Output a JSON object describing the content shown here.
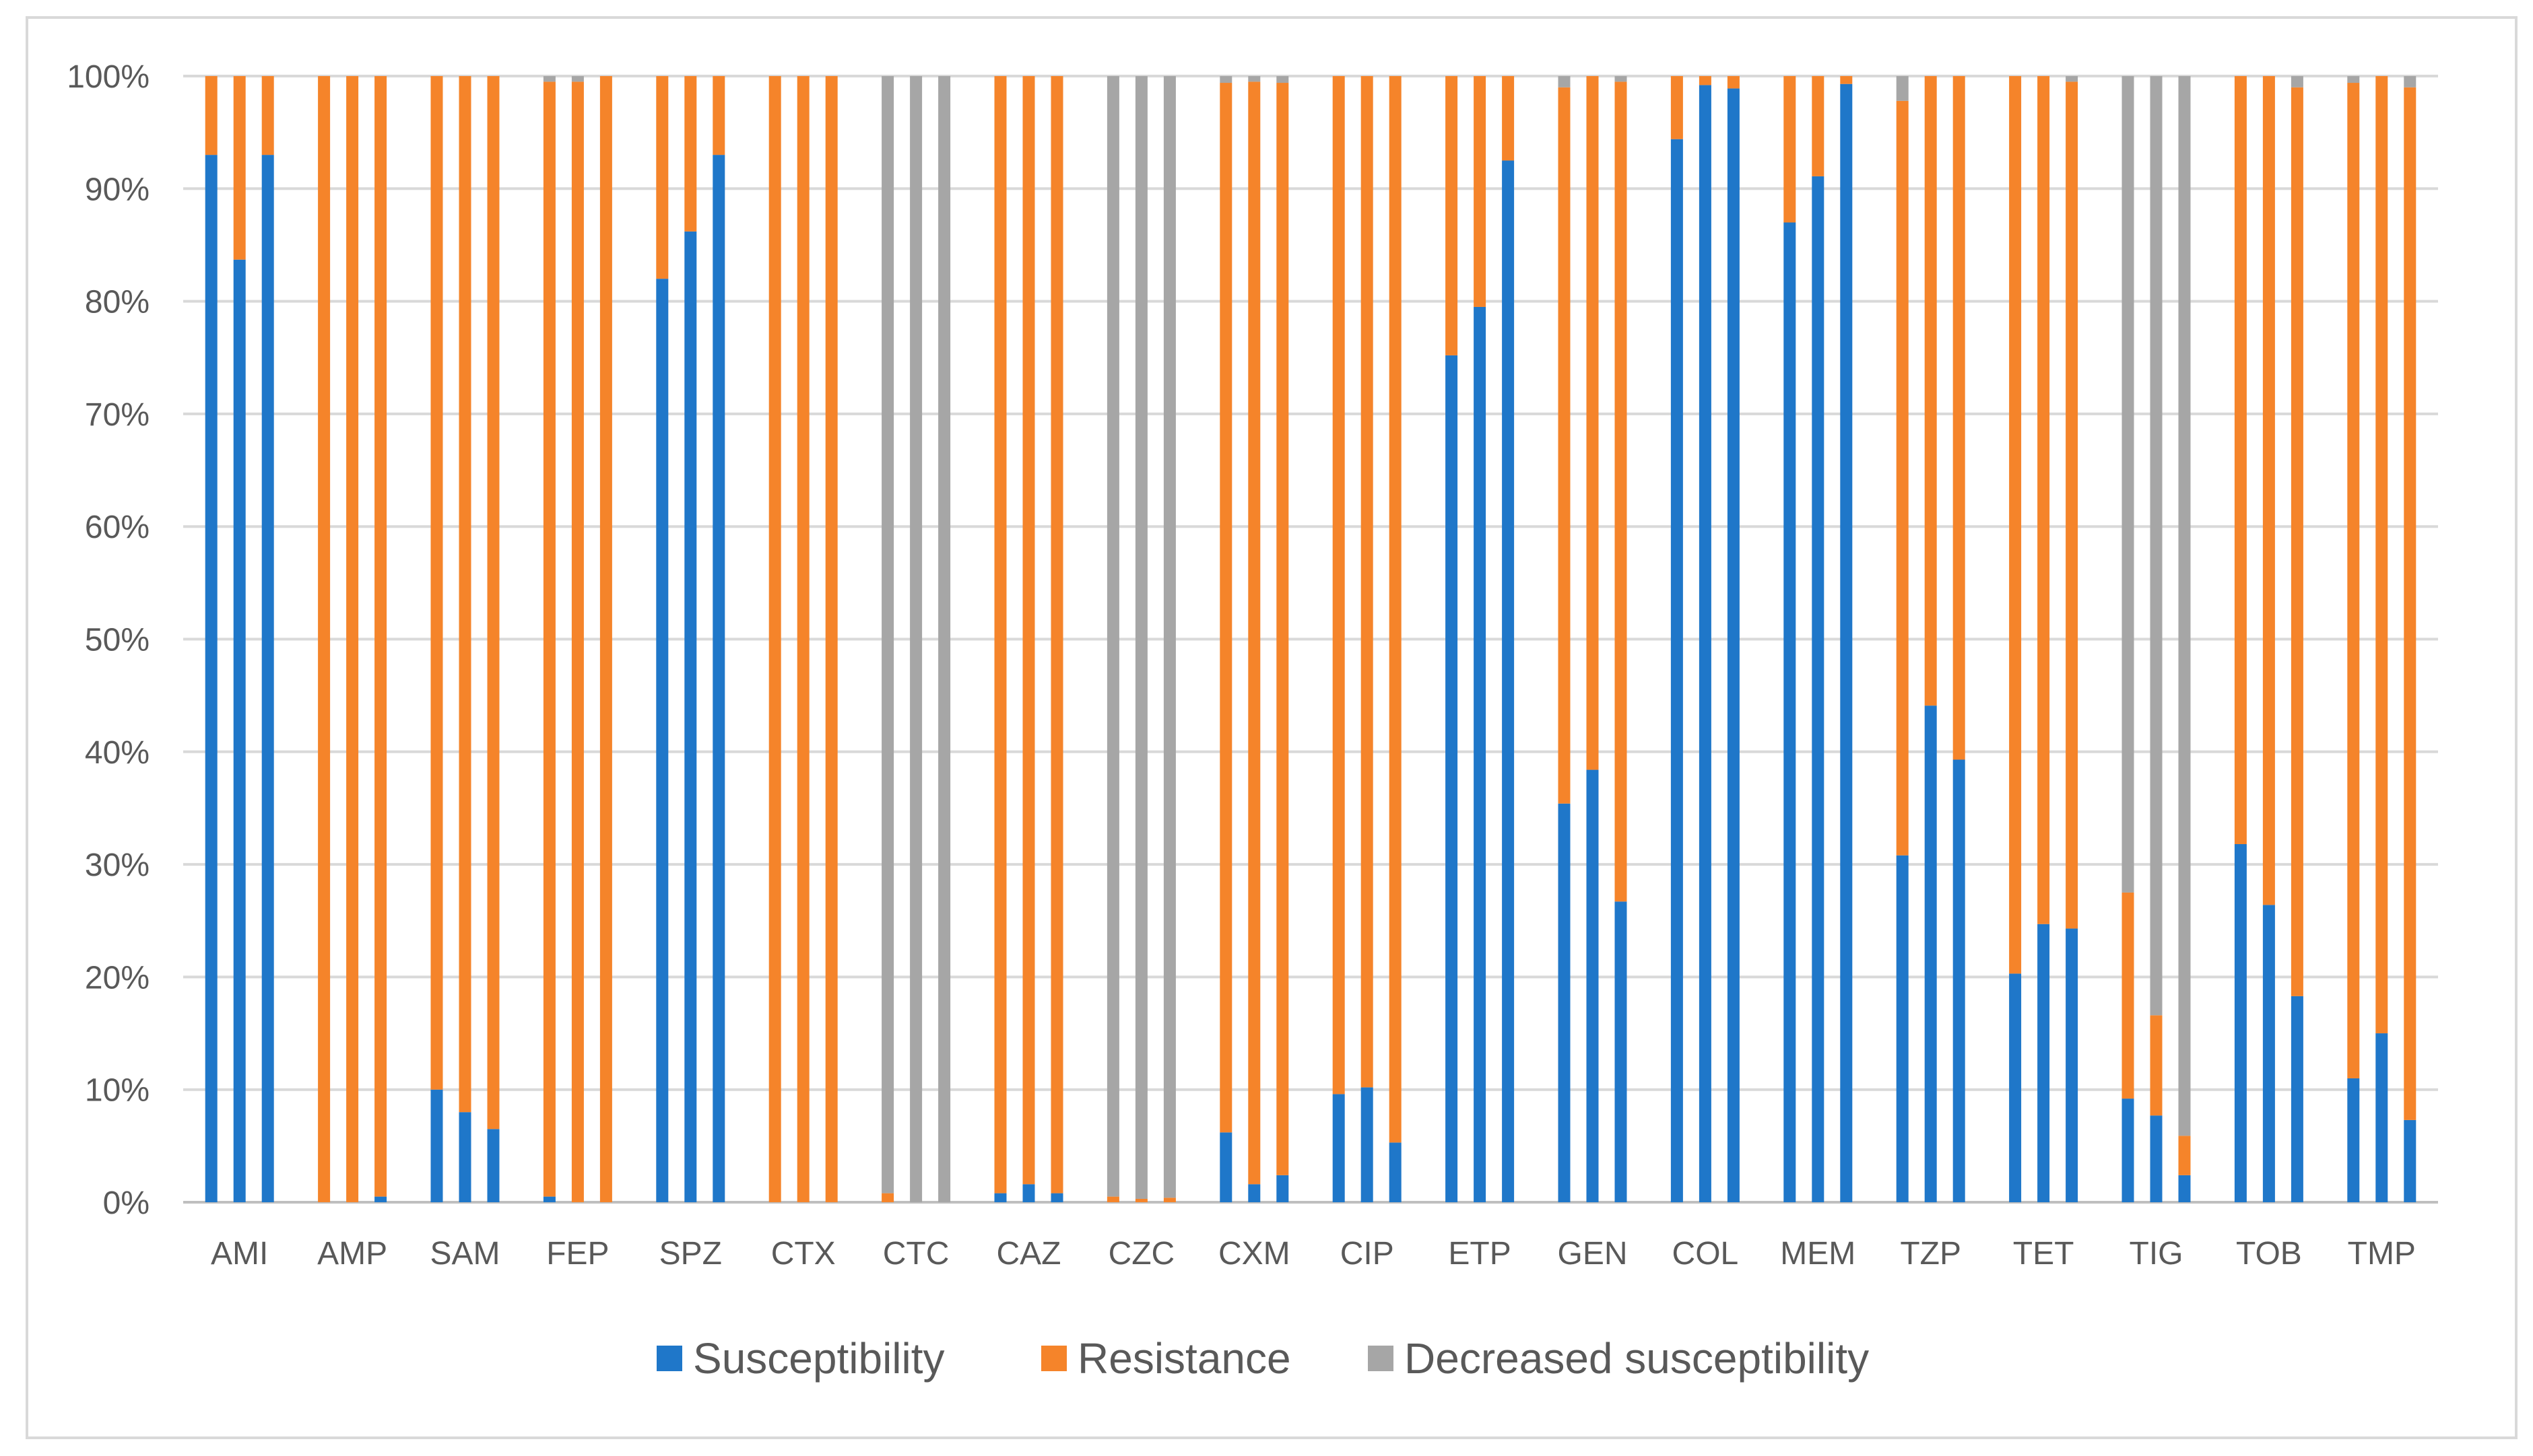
{
  "chart_data": {
    "type": "bar",
    "stacked": true,
    "percent": true,
    "title": "",
    "xlabel": "",
    "ylabel": "",
    "ylim": [
      0,
      100
    ],
    "y_ticks": [
      "0%",
      "10%",
      "20%",
      "30%",
      "40%",
      "50%",
      "60%",
      "70%",
      "80%",
      "90%",
      "100%"
    ],
    "grid": true,
    "legend_position": "bottom",
    "bars_per_category": 3,
    "categories": [
      "AMI",
      "AMP",
      "SAM",
      "FEP",
      "SPZ",
      "CTX",
      "CTC",
      "CAZ",
      "CZC",
      "CXM",
      "CIP",
      "ETP",
      "GEN",
      "COL",
      "MEM",
      "TZP",
      "TET",
      "TIG",
      "TOB",
      "TMP"
    ],
    "colors": {
      "Susceptibility": "#1f77c9",
      "Resistance": "#f5842a",
      "Decreased susceptibility": "#a6a6a6",
      "grid": "#d9d9d9",
      "axis": "#bfbfbf"
    },
    "series": [
      {
        "name": "Susceptibility",
        "values": [
          [
            93,
            83.7,
            93
          ],
          [
            0,
            0,
            0.5
          ],
          [
            10,
            8,
            6.5
          ],
          [
            0.5,
            0,
            0
          ],
          [
            82,
            86.2,
            93
          ],
          [
            0,
            0,
            0
          ],
          [
            0,
            0,
            0
          ],
          [
            0.8,
            1.6,
            0.8
          ],
          [
            0,
            0,
            0
          ],
          [
            6.2,
            1.6,
            2.4
          ],
          [
            9.6,
            10.2,
            5.3
          ],
          [
            75.2,
            79.5,
            92.5
          ],
          [
            35.4,
            38.4,
            26.7
          ],
          [
            94.4,
            99.2,
            98.9
          ],
          [
            87,
            91.1,
            99.3
          ],
          [
            30.8,
            44.1,
            39.3
          ],
          [
            20.3,
            24.7,
            24.3
          ],
          [
            9.2,
            7.7,
            2.4
          ],
          [
            31.8,
            26.4,
            18.3
          ],
          [
            11,
            15,
            7.3
          ]
        ]
      },
      {
        "name": "Resistance",
        "values": [
          [
            7,
            16.3,
            7
          ],
          [
            100,
            100,
            99.5
          ],
          [
            90,
            92,
            93.5
          ],
          [
            99,
            99.5,
            100
          ],
          [
            18,
            13.8,
            7
          ],
          [
            100,
            100,
            100
          ],
          [
            0.8,
            0,
            0
          ],
          [
            99.2,
            98.4,
            99.2
          ],
          [
            0.5,
            0.3,
            0.4
          ],
          [
            93.2,
            97.9,
            97
          ],
          [
            90.4,
            89.8,
            94.7
          ],
          [
            24.8,
            20.5,
            7.5
          ],
          [
            63.6,
            61.6,
            72.8
          ],
          [
            5.6,
            0.8,
            1.1
          ],
          [
            13,
            8.9,
            0.7
          ],
          [
            67,
            55.9,
            60.7
          ],
          [
            79.7,
            75.3,
            75.2
          ],
          [
            18.3,
            8.9,
            3.5
          ],
          [
            68.2,
            73.6,
            80.7
          ],
          [
            88.4,
            85,
            91.7
          ]
        ]
      },
      {
        "name": "Decreased susceptibility",
        "values": [
          [
            0,
            0,
            0
          ],
          [
            0,
            0,
            0
          ],
          [
            0,
            0,
            0
          ],
          [
            0.5,
            0.5,
            0
          ],
          [
            0,
            0,
            0
          ],
          [
            0,
            0,
            0
          ],
          [
            99.2,
            100,
            100
          ],
          [
            0,
            0,
            0
          ],
          [
            99.5,
            99.7,
            99.6
          ],
          [
            0.6,
            0.5,
            0.6
          ],
          [
            0,
            0,
            0
          ],
          [
            0,
            0,
            0
          ],
          [
            1,
            0,
            0.5
          ],
          [
            0,
            0,
            0
          ],
          [
            0,
            0,
            0
          ],
          [
            2.2,
            0,
            0
          ],
          [
            0,
            0,
            0.5
          ],
          [
            72.5,
            83.4,
            94.1
          ],
          [
            0,
            0,
            1
          ],
          [
            0.6,
            0,
            1
          ]
        ]
      }
    ]
  }
}
